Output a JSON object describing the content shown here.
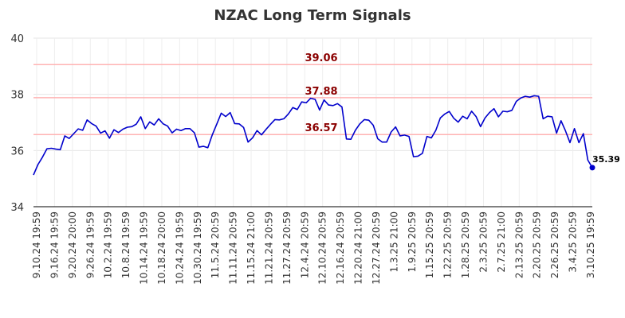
{
  "chart_data": {
    "type": "line",
    "title": "NZAC Long Term Signals",
    "xlabel": "",
    "ylabel": "",
    "ylim": [
      34,
      40
    ],
    "yticks": [
      34,
      36,
      38,
      40
    ],
    "grid": true,
    "x_tick_labels": [
      "9.10.24 19:59",
      "9.16.24 19:59",
      "9.20.24 20:00",
      "9.26.24 19:59",
      "10.2.24 19:59",
      "10.8.24 19:59",
      "10.14.24 19:59",
      "10.18.24 20:00",
      "10.24.24 19:59",
      "10.30.24 19:59",
      "11.5.24 20:59",
      "11.11.24 20:59",
      "11.15.24 21:00",
      "11.21.24 20:59",
      "11.27.24 20:59",
      "12.4.24 20:59",
      "12.10.24 20:59",
      "12.16.24 20:59",
      "12.20.24 21:00",
      "12.27.24 20:59",
      "1.3.25 21:00",
      "1.9.25 20:59",
      "1.15.25 20:59",
      "1.22.25 20:59",
      "1.28.25 20:59",
      "2.3.25 20:59",
      "2.7.25 21:00",
      "2.13.25 20:59",
      "2.20.25 20:59",
      "2.26.25 20:59",
      "3.4.25 20:59",
      "3.10.25 19:59"
    ],
    "reference_lines": [
      {
        "value": 39.06,
        "label": "39.06",
        "color": "#ffb3b3"
      },
      {
        "value": 37.88,
        "label": "37.88",
        "color": "#ffb3b3"
      },
      {
        "value": 36.57,
        "label": "36.57",
        "color": "#ffb3b3"
      }
    ],
    "series": [
      {
        "color": "#0000cc",
        "values": [
          35.13,
          35.5,
          35.76,
          36.06,
          36.08,
          36.05,
          36.03,
          36.52,
          36.43,
          36.6,
          36.77,
          36.72,
          37.09,
          36.96,
          36.87,
          36.62,
          36.7,
          36.44,
          36.74,
          36.64,
          36.76,
          36.83,
          36.85,
          36.94,
          37.2,
          36.78,
          37.02,
          36.91,
          37.13,
          36.95,
          36.87,
          36.63,
          36.76,
          36.71,
          36.78,
          36.78,
          36.63,
          36.12,
          36.15,
          36.1,
          36.56,
          36.94,
          37.33,
          37.21,
          37.35,
          36.96,
          36.95,
          36.82,
          36.3,
          36.45,
          36.71,
          36.56,
          36.75,
          36.93,
          37.1,
          37.09,
          37.13,
          37.3,
          37.53,
          37.46,
          37.73,
          37.7,
          37.86,
          37.82,
          37.44,
          37.8,
          37.62,
          37.6,
          37.67,
          37.55,
          36.41,
          36.4,
          36.72,
          36.95,
          37.1,
          37.08,
          36.9,
          36.42,
          36.3,
          36.3,
          36.66,
          36.84,
          36.52,
          36.55,
          36.5,
          35.78,
          35.8,
          35.9,
          36.5,
          36.45,
          36.72,
          37.16,
          37.3,
          37.39,
          37.15,
          37.01,
          37.22,
          37.13,
          37.4,
          37.21,
          36.85,
          37.16,
          37.35,
          37.49,
          37.2,
          37.4,
          37.38,
          37.43,
          37.75,
          37.87,
          37.93,
          37.9,
          37.95,
          37.93,
          37.13,
          37.22,
          37.2,
          36.62,
          37.06,
          36.7,
          36.28,
          36.78,
          36.28,
          36.6,
          35.66,
          35.39
        ]
      }
    ],
    "last_value_label": "35.39"
  }
}
